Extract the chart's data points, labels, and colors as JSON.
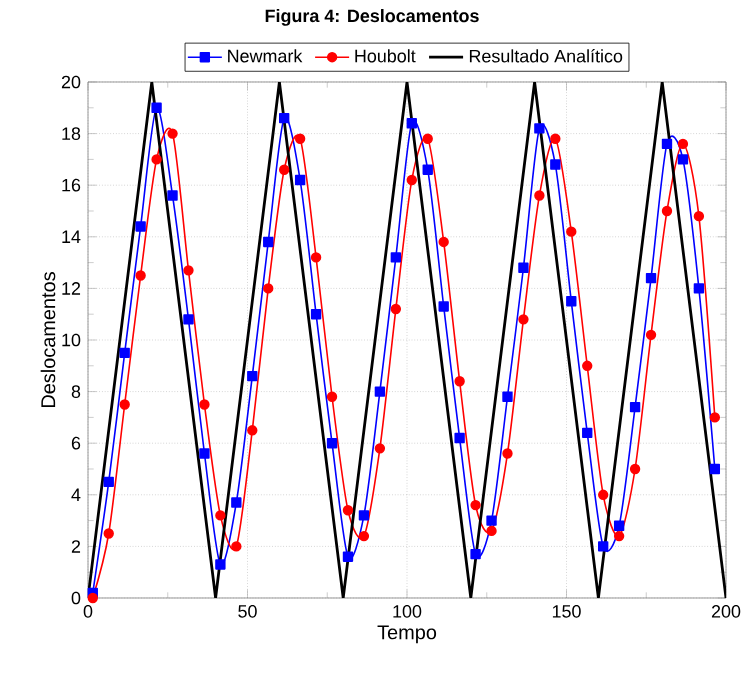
{
  "chart_data": {
    "type": "line",
    "title": "Figura 4: Deslocamentos",
    "xlabel": "Tempo",
    "ylabel": "Deslocamentos",
    "xlim": [
      0,
      200
    ],
    "ylim": [
      0,
      20
    ],
    "xticks": [
      0,
      50,
      100,
      150,
      200
    ],
    "yticks": [
      0,
      2,
      4,
      6,
      8,
      10,
      12,
      14,
      16,
      18,
      20
    ],
    "grid": true,
    "legend": "top",
    "line_style": "solid",
    "series": [
      {
        "name": "Newmark",
        "color": "#0000ff",
        "marker": "square",
        "x": [
          1.5,
          6.5,
          11.5,
          16.5,
          21.5,
          26.5,
          31.5,
          36.5,
          41.5,
          46.5,
          51.5,
          56.5,
          61.5,
          66.5,
          71.5,
          76.5,
          81.5,
          86.5,
          91.5,
          96.5,
          101.5,
          106.5,
          111.5,
          116.5,
          121.5,
          126.5,
          131.5,
          136.5,
          141.5,
          146.5,
          151.5,
          156.5,
          161.5,
          166.5,
          171.5,
          176.5,
          181.5,
          186.5,
          191.5,
          196.5
        ],
        "values": [
          0.2,
          4.5,
          9.5,
          14.4,
          19.0,
          15.6,
          10.8,
          5.6,
          1.3,
          3.7,
          8.6,
          13.8,
          18.6,
          16.2,
          11.0,
          6.0,
          1.6,
          3.2,
          8.0,
          13.2,
          18.4,
          16.6,
          11.3,
          6.2,
          1.7,
          3.0,
          7.8,
          12.8,
          18.2,
          16.8,
          11.5,
          6.4,
          2.0,
          2.8,
          7.4,
          12.4,
          17.6,
          17.0,
          12.0,
          5.0
        ]
      },
      {
        "name": "Houbolt",
        "color": "#ff0000",
        "marker": "circle",
        "x": [
          1.5,
          6.5,
          11.5,
          16.5,
          21.5,
          26.5,
          31.5,
          36.5,
          41.5,
          46.5,
          51.5,
          56.5,
          61.5,
          66.5,
          71.5,
          76.5,
          81.5,
          86.5,
          91.5,
          96.5,
          101.5,
          106.5,
          111.5,
          116.5,
          121.5,
          126.5,
          131.5,
          136.5,
          141.5,
          146.5,
          151.5,
          156.5,
          161.5,
          166.5,
          171.5,
          176.5,
          181.5,
          186.5,
          191.5,
          196.5
        ],
        "values": [
          0,
          2.5,
          7.5,
          12.5,
          17.0,
          18.0,
          12.7,
          7.5,
          3.2,
          2.0,
          6.5,
          12.0,
          16.6,
          17.8,
          13.2,
          7.8,
          3.4,
          2.4,
          5.8,
          11.2,
          16.2,
          17.8,
          13.8,
          8.4,
          3.6,
          2.6,
          5.6,
          10.8,
          15.6,
          17.8,
          14.2,
          9.0,
          4.0,
          2.4,
          5.0,
          10.2,
          15.0,
          17.6,
          14.8,
          7.0
        ]
      },
      {
        "name": "Resultado Analítico",
        "color": "#000000",
        "marker": "none",
        "x": [
          0,
          20,
          40,
          60,
          80,
          100,
          120,
          140,
          160,
          180,
          200
        ],
        "values": [
          0,
          20,
          0,
          20,
          0,
          20,
          0,
          20,
          0,
          20,
          0
        ]
      }
    ]
  }
}
